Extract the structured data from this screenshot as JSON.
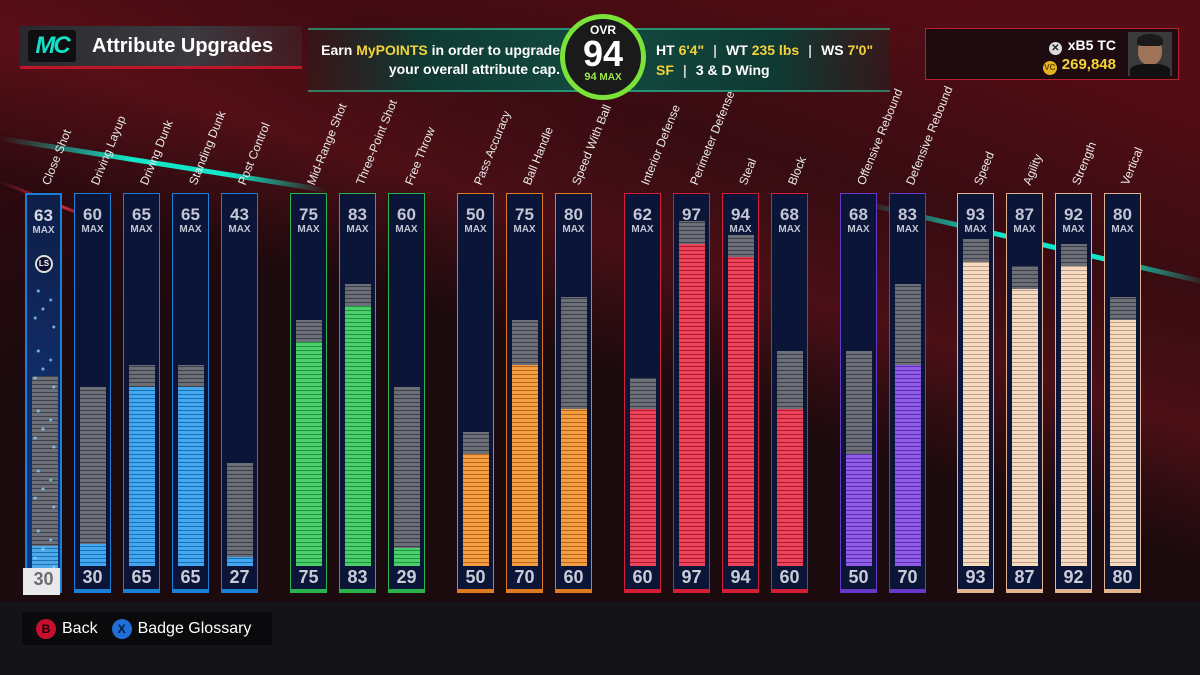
{
  "header": {
    "logo": "MC",
    "title": "Attribute Upgrades"
  },
  "banner": {
    "line1_prefix": "Earn ",
    "line1_highlight": "MyPOINTS",
    "line1_suffix": " in order to upgrade",
    "line2": "your overall attribute cap.",
    "ovr_label": "OVR",
    "ovr_value": "94",
    "ovr_max_value": "94",
    "ovr_max_label": "MAX",
    "ht_label": "HT",
    "ht_value": "6'4\"",
    "wt_label": "WT",
    "wt_value": "235 lbs",
    "ws_label": "WS",
    "ws_value": "7'0\"",
    "position": "SF",
    "archetype": "3 & D Wing",
    "sep": "|"
  },
  "user": {
    "gamertag": "xB5  TC",
    "vc_amount": "269,848",
    "platform_icon": "xbox-icon",
    "currency_icon": "vc-coin-icon"
  },
  "max_label": "MAX",
  "selected_button_icon": "LS",
  "attributes": [
    {
      "label": "Close Shot",
      "max": "63",
      "current": "30",
      "cap_value": 63,
      "current_value": 30,
      "color": "#2a9ae8",
      "selected": true
    },
    {
      "label": "Driving Layup",
      "max": "60",
      "current": "30",
      "cap_value": 60,
      "current_value": 30,
      "color": "#1f96ee"
    },
    {
      "label": "Driving Dunk",
      "max": "65",
      "current": "65",
      "cap_value": 65,
      "current_value": 65,
      "color": "#1f96ee"
    },
    {
      "label": "Standing Dunk",
      "max": "65",
      "current": "65",
      "cap_value": 65,
      "current_value": 65,
      "color": "#1f96ee"
    },
    {
      "label": "Post Control",
      "max": "43",
      "current": "27",
      "cap_value": 43,
      "current_value": 27,
      "color": "#1f96ee"
    },
    {
      "label": "Mid-Range Shot",
      "max": "75",
      "current": "75",
      "cap_value": 75,
      "current_value": 75,
      "color": "#27c650"
    },
    {
      "label": "Three-Point Shot",
      "max": "83",
      "current": "83",
      "cap_value": 83,
      "current_value": 83,
      "color": "#27c650"
    },
    {
      "label": "Free Throw",
      "max": "60",
      "current": "29",
      "cap_value": 60,
      "current_value": 29,
      "color": "#27c650"
    },
    {
      "label": "Pass Accuracy",
      "max": "50",
      "current": "50",
      "cap_value": 50,
      "current_value": 50,
      "color": "#f28a1e"
    },
    {
      "label": "Ball Handle",
      "max": "75",
      "current": "70",
      "cap_value": 75,
      "current_value": 70,
      "color": "#f28a1e"
    },
    {
      "label": "Speed With Ball",
      "max": "80",
      "current": "60",
      "cap_value": 80,
      "current_value": 60,
      "color": "#f28a1e"
    },
    {
      "label": "Interior Defense",
      "max": "62",
      "current": "60",
      "cap_value": 62,
      "current_value": 60,
      "color": "#e8203c"
    },
    {
      "label": "Perimeter Defense",
      "max": "97",
      "current": "97",
      "cap_value": 97,
      "current_value": 97,
      "color": "#e8203c"
    },
    {
      "label": "Steal",
      "max": "94",
      "current": "94",
      "cap_value": 94,
      "current_value": 94,
      "color": "#e8203c"
    },
    {
      "label": "Block",
      "max": "68",
      "current": "60",
      "cap_value": 68,
      "current_value": 60,
      "color": "#e8203c"
    },
    {
      "label": "Offensive Rebound",
      "max": "68",
      "current": "50",
      "cap_value": 68,
      "current_value": 50,
      "color": "#7a3ee6"
    },
    {
      "label": "Defensive Rebound",
      "max": "83",
      "current": "70",
      "cap_value": 83,
      "current_value": 70,
      "color": "#7a3ee6"
    },
    {
      "label": "Speed",
      "max": "93",
      "current": "93",
      "cap_value": 93,
      "current_value": 93,
      "color": "#f6d3b4"
    },
    {
      "label": "Agility",
      "max": "87",
      "current": "87",
      "cap_value": 87,
      "current_value": 87,
      "color": "#f6d3b4"
    },
    {
      "label": "Strength",
      "max": "92",
      "current": "92",
      "cap_value": 92,
      "current_value": 92,
      "color": "#f6d3b4"
    },
    {
      "label": "Vertical",
      "max": "80",
      "current": "80",
      "cap_value": 80,
      "current_value": 80,
      "color": "#f6d3b4"
    }
  ],
  "group_border_colors": [
    "#1a7fd6",
    "#2bb24c",
    "#e07a22",
    "#d41e35",
    "#6a38c8",
    "#e0b48e"
  ],
  "footer": {
    "back_button": "B",
    "back_label": "Back",
    "glossary_button": "X",
    "glossary_label": "Badge Glossary"
  }
}
